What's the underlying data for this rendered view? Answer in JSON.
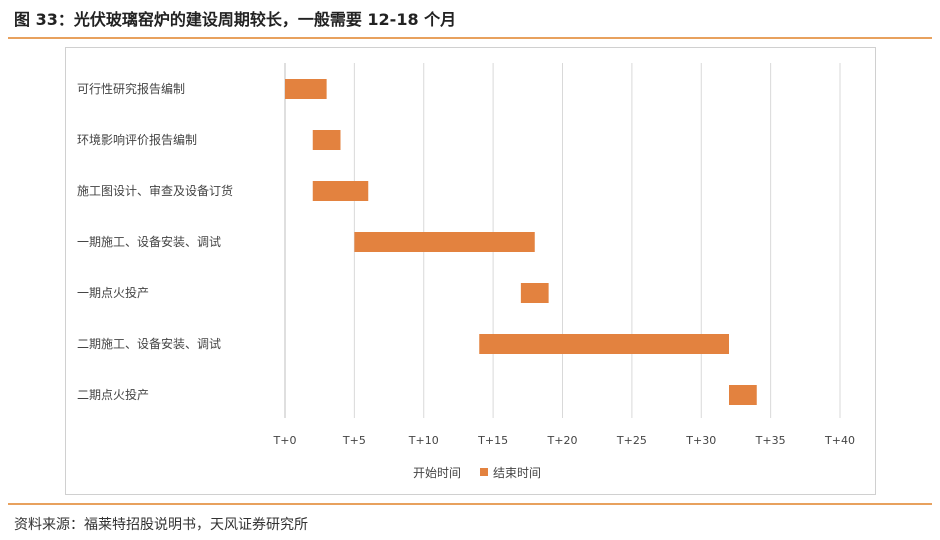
{
  "page": {
    "title": "图 33：光伏玻璃窑炉的建设周期较长，一般需要 12-18 个月",
    "source": "资料来源：福莱特招股说明书，天风证券研究所"
  },
  "colors": {
    "bar": "#E3823F",
    "rule": "#E8A15E",
    "grid": "#d9d9d9",
    "axis": "#bfbfbf"
  },
  "chart_data": {
    "type": "bar",
    "orientation": "horizontal",
    "stacked": true,
    "categories": [
      "可行性研究报告编制",
      "环境影响评价报告编制",
      "施工图设计、审查及设备订货",
      "一期施工、设备安装、调试",
      "一期点火投产",
      "二期施工、设备安装、调试",
      "二期点火投产"
    ],
    "series": [
      {
        "name": "开始时间",
        "values": [
          0,
          2,
          2,
          5,
          17,
          14,
          32
        ],
        "visible": false
      },
      {
        "name": "结束时间",
        "values": [
          3,
          2,
          4,
          13,
          2,
          18,
          2
        ],
        "visible": true
      }
    ],
    "x_ticks": [
      0,
      5,
      10,
      15,
      20,
      25,
      30,
      35,
      40
    ],
    "x_tick_labels": [
      "T+0",
      "T+5",
      "T+10",
      "T+15",
      "T+20",
      "T+25",
      "T+30",
      "T+35",
      "T+40"
    ],
    "xlim": [
      0,
      40
    ],
    "grid": true,
    "legend_position": "bottom"
  }
}
